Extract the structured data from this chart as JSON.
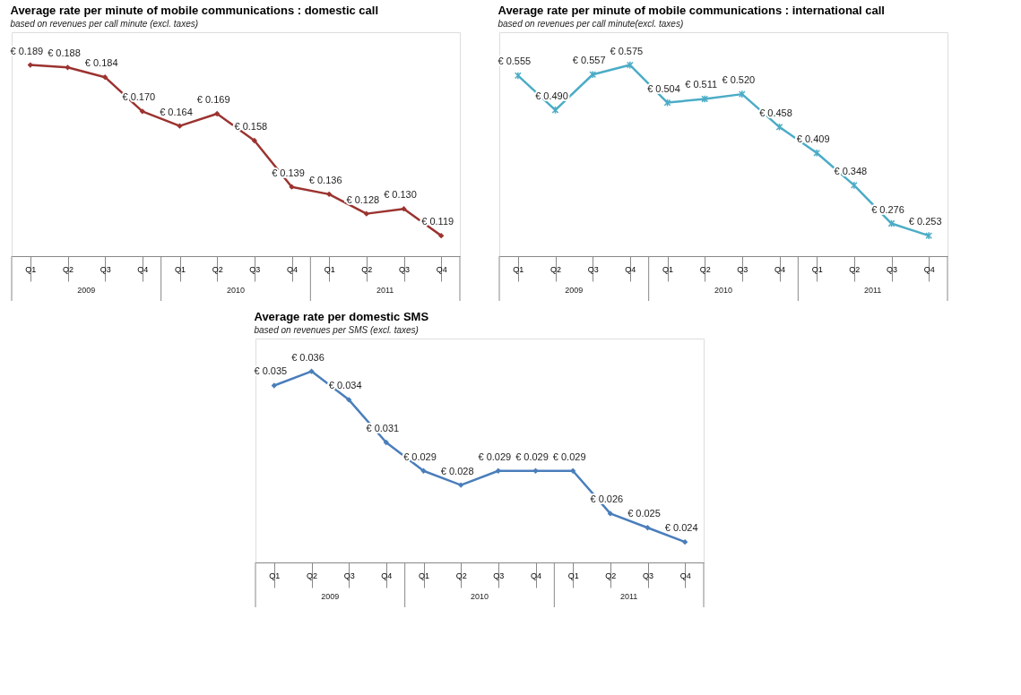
{
  "chart_data": [
    {
      "type": "line",
      "title": "Average rate per minute of mobile communications : domestic call",
      "subtitle": "based on revenues per call minute (excl. taxes)",
      "categories": [
        "Q1",
        "Q2",
        "Q3",
        "Q4",
        "Q1",
        "Q2",
        "Q3",
        "Q4",
        "Q1",
        "Q2",
        "Q3",
        "Q4"
      ],
      "series": [
        {
          "color": "#9b3330",
          "values": [
            0.189,
            0.188,
            0.184,
            0.17,
            0.164,
            0.169,
            0.158,
            0.139,
            0.136,
            0.128,
            0.13,
            0.119
          ],
          "value_labels": [
            "€ 0.189",
            "€ 0.188",
            "€ 0.184",
            "€ 0.170",
            "€ 0.164",
            "€ 0.169",
            "€ 0.158",
            "€ 0.139",
            "€ 0.136",
            "€ 0.128",
            "€ 0.130",
            "€ 0.119"
          ]
        }
      ],
      "annotations": [
        "2009",
        "2010",
        "2011"
      ],
      "marker": "diamond",
      "line_style": "solid",
      "grid": false
    },
    {
      "type": "line",
      "title": "Average rate per minute of mobile communications : international call",
      "subtitle": "based on revenues per call minute(excl. taxes)",
      "categories": [
        "Q1",
        "Q2",
        "Q3",
        "Q4",
        "Q1",
        "Q2",
        "Q3",
        "Q4",
        "Q1",
        "Q2",
        "Q3",
        "Q4"
      ],
      "series": [
        {
          "color": "#4bacc6",
          "values": [
            0.555,
            0.49,
            0.557,
            0.575,
            0.504,
            0.511,
            0.52,
            0.458,
            0.409,
            0.348,
            0.276,
            0.253
          ],
          "value_labels": [
            "€ 0.555",
            "€ 0.490",
            "€ 0.557",
            "€ 0.575",
            "€ 0.504",
            "€ 0.511",
            "€ 0.520",
            "€ 0.458",
            "€ 0.409",
            "€ 0.348",
            "€ 0.276",
            "€ 0.253"
          ]
        }
      ],
      "annotations": [
        "2009",
        "2010",
        "2011"
      ],
      "marker": "cross",
      "line_style": "solid",
      "grid": false
    },
    {
      "type": "line",
      "title": "Average rate per domestic SMS",
      "subtitle": "based on revenues per SMS (excl. taxes)",
      "categories": [
        "Q1",
        "Q2",
        "Q3",
        "Q4",
        "Q1",
        "Q2",
        "Q3",
        "Q4",
        "Q1",
        "Q2",
        "Q3",
        "Q4"
      ],
      "series": [
        {
          "color": "#4a7ebb",
          "values": [
            0.035,
            0.036,
            0.034,
            0.031,
            0.029,
            0.028,
            0.029,
            0.029,
            0.029,
            0.026,
            0.025,
            0.024
          ],
          "value_labels": [
            "€ 0.035",
            "€ 0.036",
            "€ 0.034",
            "€ 0.031",
            "€ 0.029",
            "€ 0.028",
            "€ 0.029",
            "€ 0.029",
            "€ 0.029",
            "€ 0.026",
            "€ 0.025",
            "€ 0.024"
          ]
        }
      ],
      "annotations": [
        "2009",
        "2010",
        "2011"
      ],
      "marker": "diamond",
      "line_style": "solid",
      "grid": false
    }
  ]
}
